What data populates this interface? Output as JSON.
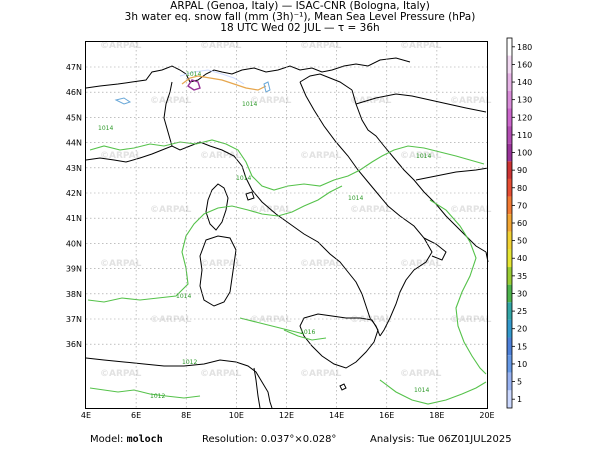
{
  "header": {
    "line1": "ARPAL (Genoa, Italy)  —  ISAC-CNR (Bologna, Italy)",
    "line2": "3h water eq. snow fall (mm (3h)⁻¹), Mean Sea Level Pressure (hPa)",
    "line3": "18 UTC Wed 02 JUL  —  τ = 36h"
  },
  "map": {
    "lon_labels": [
      "4E",
      "6E",
      "8E",
      "10E",
      "12E",
      "14E",
      "16E",
      "18E",
      "20E"
    ],
    "lat_labels": [
      "47N",
      "46N",
      "45N",
      "44N",
      "43N",
      "42N",
      "41N",
      "40N",
      "39N",
      "38N",
      "37N",
      "36N"
    ],
    "watermark": "ARPAL",
    "isobar_labels": [
      "1014",
      "1014",
      "1014",
      "1014",
      "1014",
      "1014",
      "1014",
      "1012",
      "1012",
      "1014",
      "1016"
    ]
  },
  "colorbar": {
    "levels": [
      "180",
      "160",
      "140",
      "130",
      "120",
      "110",
      "100",
      "90",
      "80",
      "70",
      "60",
      "50",
      "40",
      "35",
      "30",
      "25",
      "20",
      "15",
      "10",
      "5",
      "1"
    ],
    "colors": [
      "#ffffff",
      "#f2d9f2",
      "#e6b3e6",
      "#d98cd9",
      "#cc66cc",
      "#b24cb2",
      "#993399",
      "#cc3333",
      "#e64d33",
      "#f27a33",
      "#f2a633",
      "#f2d233",
      "#e6e633",
      "#99cc33",
      "#4db34d",
      "#33a6a6",
      "#3399cc",
      "#4d80d9",
      "#6699e6",
      "#99b3f2",
      "#ccd9ff"
    ]
  },
  "footer": {
    "model_label": "Model:",
    "model_value": "moloch",
    "resolution": "Resolution: 0.037°×0.028°",
    "analysis": "Analysis: Tue 06Z01JUL2025"
  }
}
